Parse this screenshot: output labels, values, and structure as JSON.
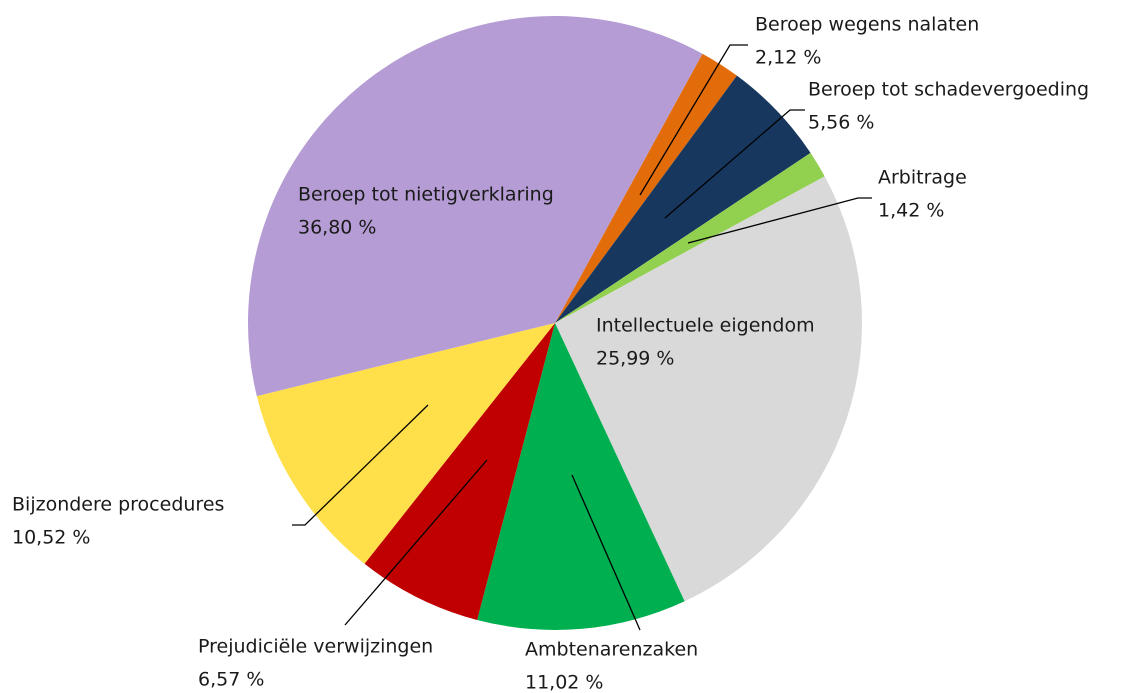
{
  "chart_data": {
    "type": "pie",
    "categories": [
      "Beroep wegens nalaten",
      "Beroep tot schadevergoeding",
      "Arbitrage",
      "Intellectuele eigendom",
      "Ambtenarenzaken",
      "Prejudiciële verwijzingen",
      "Bijzondere procedures",
      "Beroep tot nietigverklaring"
    ],
    "values": [
      2.12,
      5.56,
      1.42,
      25.99,
      11.02,
      6.57,
      10.52,
      36.8
    ],
    "value_labels": [
      "2,12 %",
      "5,56 %",
      "1,42 %",
      "25,99 %",
      "11,02 %",
      "6,57 %",
      "10,52 %",
      "36,80 %"
    ],
    "colors": [
      "#e36c0a",
      "#17375e",
      "#92d050",
      "#d9d9d9",
      "#00b050",
      "#c00000",
      "#ffe04a",
      "#b59cd4"
    ]
  }
}
